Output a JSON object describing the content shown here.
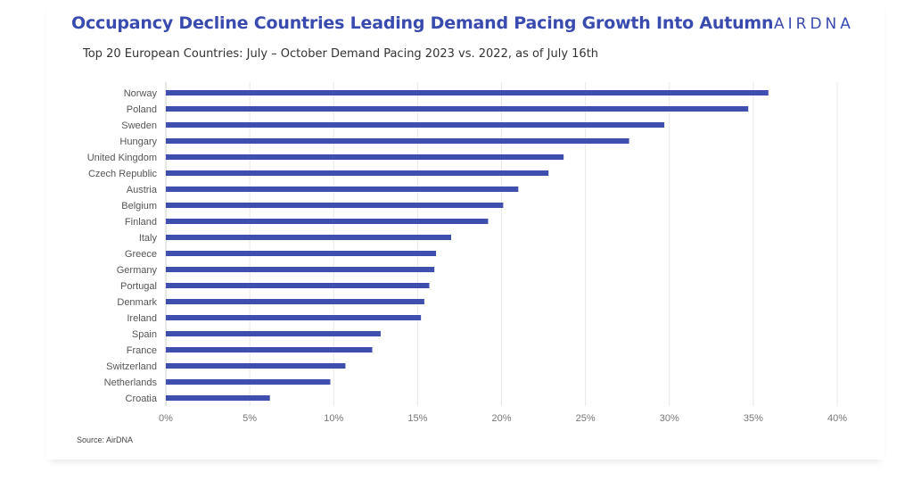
{
  "header": {
    "title": "Occupancy Decline Countries Leading Demand Pacing Growth Into Autumn",
    "subtitle": "Top 20 European Countries: July – October Demand Pacing 2023 vs. 2022, as of July 16th",
    "logo": "AIRDNA",
    "source": "Source: AirDNA"
  },
  "colors": {
    "bar": "#3f4fad",
    "title": "#3a4bb0",
    "grid": "#e8e8e8"
  },
  "chart_data": {
    "type": "bar",
    "orientation": "horizontal",
    "title": "",
    "xlabel": "",
    "ylabel": "",
    "xlim": [
      0,
      40
    ],
    "x_ticks": [
      0,
      5,
      10,
      15,
      20,
      25,
      30,
      35,
      40
    ],
    "x_tick_labels": [
      "0%",
      "5%",
      "10%",
      "15%",
      "20%",
      "25%",
      "30%",
      "35%",
      "40%"
    ],
    "grid": true,
    "legend": "none",
    "categories": [
      "Norway",
      "Poland",
      "Sweden",
      "Hungary",
      "United Kingdom",
      "Czech Republic",
      "Austria",
      "Belgium",
      "Finland",
      "Italy",
      "Greece",
      "Germany",
      "Portugal",
      "Denmark",
      "Ireland",
      "Spain",
      "France",
      "Switzerland",
      "Netherlands",
      "Croatia"
    ],
    "values": [
      35.9,
      34.7,
      29.7,
      27.6,
      23.7,
      22.8,
      21.0,
      20.1,
      19.2,
      17.0,
      16.1,
      16.0,
      15.7,
      15.4,
      15.2,
      12.8,
      12.3,
      10.7,
      9.8,
      6.2
    ]
  }
}
